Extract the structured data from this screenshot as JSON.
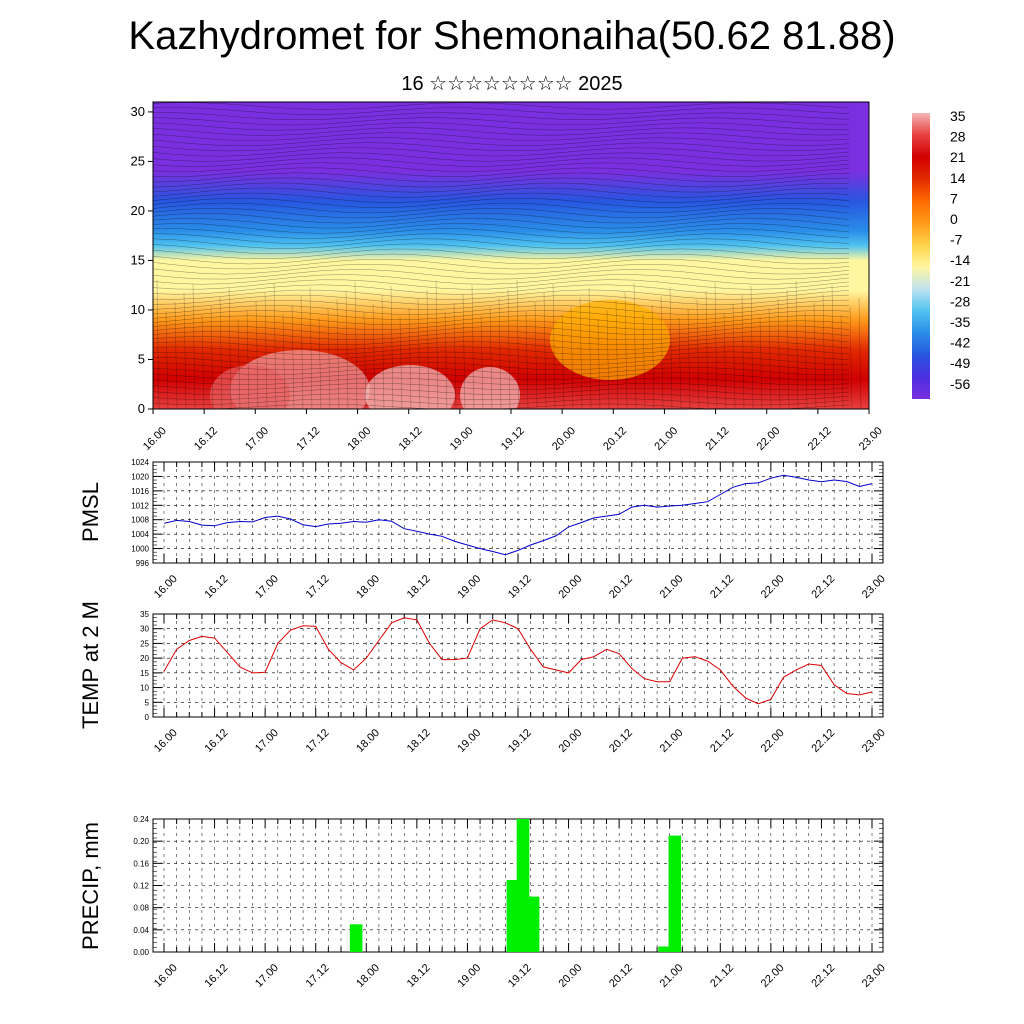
{
  "header": {
    "title": "Kazhydromet for Shemonaiha(50.62 81.88)",
    "subtitle": "16 ☆☆☆☆☆☆☆☆ 2025"
  },
  "chart_data": [
    {
      "type": "heatmap",
      "name": "cross-section",
      "ylim": [
        0,
        31
      ],
      "yticks": [
        "0",
        "5",
        "10",
        "15",
        "20",
        "25",
        "30"
      ],
      "xticks": [
        "16.00",
        "16.12",
        "17.00",
        "17.12",
        "18.00",
        "18.12",
        "19.00",
        "19.12",
        "20.00",
        "20.12",
        "21.00",
        "21.12",
        "22.00",
        "22.12",
        "23.00"
      ],
      "colorbar": {
        "labels": [
          "35",
          "28",
          "21",
          "14",
          "7",
          "0",
          "-7",
          "-14",
          "-21",
          "-28",
          "-35",
          "-42",
          "-49",
          "-56"
        ],
        "colors": [
          "#f4b6b6",
          "#e84040",
          "#d10000",
          "#e22a00",
          "#ff6a00",
          "#ff9a1a",
          "#ffd34a",
          "#fff6a0",
          "#bfe3f0",
          "#4fc3f0",
          "#2a8de8",
          "#2856e0",
          "#4a2ee0",
          "#7a30e0"
        ]
      },
      "profile_heights": [
        0,
        3,
        6,
        9,
        12,
        15,
        16.5,
        18,
        21,
        24,
        27,
        30,
        31
      ],
      "profile_values": [
        30,
        24,
        14,
        2,
        -8,
        -14,
        -22,
        -32,
        -42,
        -50,
        -56,
        -60,
        -62
      ]
    },
    {
      "type": "line",
      "ylabel": "PMSL",
      "ylim": [
        996,
        1024
      ],
      "yticks": [
        "996",
        "1000",
        "1004",
        "1008",
        "1012",
        "1016",
        "1020",
        "1024"
      ],
      "xticks": [
        "16.00",
        "16.12",
        "17.00",
        "17.12",
        "18.00",
        "18.12",
        "19.00",
        "19.12",
        "20.00",
        "20.12",
        "21.00",
        "21.12",
        "22.00",
        "22.12",
        "23.00"
      ],
      "color": "#0000cc",
      "values": [
        1007.0,
        1007.8,
        1007.5,
        1006.5,
        1006.3,
        1007.2,
        1007.5,
        1007.4,
        1008.6,
        1009.0,
        1008.2,
        1006.6,
        1006.1,
        1006.8,
        1007.0,
        1007.5,
        1007.3,
        1008.0,
        1007.6,
        1005.5,
        1004.8,
        1004.0,
        1003.4,
        1002.0,
        1001.0,
        1000.0,
        999.2,
        998.3,
        999.5,
        1001.0,
        1002.2,
        1003.5,
        1006.0,
        1007.2,
        1008.5,
        1009.0,
        1009.5,
        1011.5,
        1012.0,
        1011.5,
        1011.8,
        1012.0,
        1012.5,
        1013.0,
        1015.0,
        1017.0,
        1018.0,
        1018.2,
        1019.5,
        1020.3,
        1019.8,
        1019.0,
        1018.5,
        1019.0,
        1018.6,
        1017.2,
        1018.0
      ]
    },
    {
      "type": "line",
      "ylabel": "TEMP at 2 M",
      "ylim": [
        0,
        35
      ],
      "yticks": [
        "0",
        "5",
        "10",
        "15",
        "20",
        "25",
        "30",
        "35"
      ],
      "xticks": [
        "16.00",
        "16.12",
        "17.00",
        "17.12",
        "18.00",
        "18.12",
        "19.00",
        "19.12",
        "20.00",
        "20.12",
        "21.00",
        "21.12",
        "22.00",
        "22.12",
        "23.00"
      ],
      "color": "#dd0000",
      "values": [
        15.5,
        23.0,
        26.0,
        27.4,
        26.8,
        22.0,
        17.0,
        15.0,
        15.2,
        25.0,
        29.5,
        31.0,
        30.8,
        23.0,
        18.5,
        16.0,
        20.0,
        26.0,
        32.0,
        33.7,
        33.0,
        25.0,
        19.5,
        19.5,
        20.0,
        30.0,
        33.0,
        32.0,
        30.0,
        23.0,
        17.0,
        16.0,
        15.0,
        19.5,
        20.5,
        23.0,
        21.5,
        16.5,
        13.0,
        12.0,
        12.0,
        20.0,
        20.5,
        19.0,
        16.0,
        10.5,
        6.5,
        4.5,
        6.0,
        13.5,
        16.0,
        18.0,
        17.5,
        11.0,
        8.0,
        7.5,
        8.5
      ]
    },
    {
      "type": "bar",
      "ylabel": "PRECIP, mm",
      "ylim": [
        0,
        0.24
      ],
      "yticks": [
        "0.00",
        "0.04",
        "0.08",
        "0.12",
        "0.16",
        "0.20",
        "0.24"
      ],
      "xticks": [
        "16.00",
        "16.12",
        "17.00",
        "17.12",
        "18.00",
        "18.12",
        "19.00",
        "19.12",
        "20.00",
        "20.12",
        "21.00",
        "21.12",
        "22.00",
        "22.12",
        "23.00"
      ],
      "color": "#00ee00",
      "bars": [
        {
          "x": 17.9,
          "value": 0.05
        },
        {
          "x": 19.45,
          "value": 0.13
        },
        {
          "x": 19.55,
          "value": 0.24
        },
        {
          "x": 19.65,
          "value": 0.1
        },
        {
          "x": 20.95,
          "value": 0.01
        },
        {
          "x": 21.05,
          "value": 0.21
        }
      ]
    }
  ]
}
